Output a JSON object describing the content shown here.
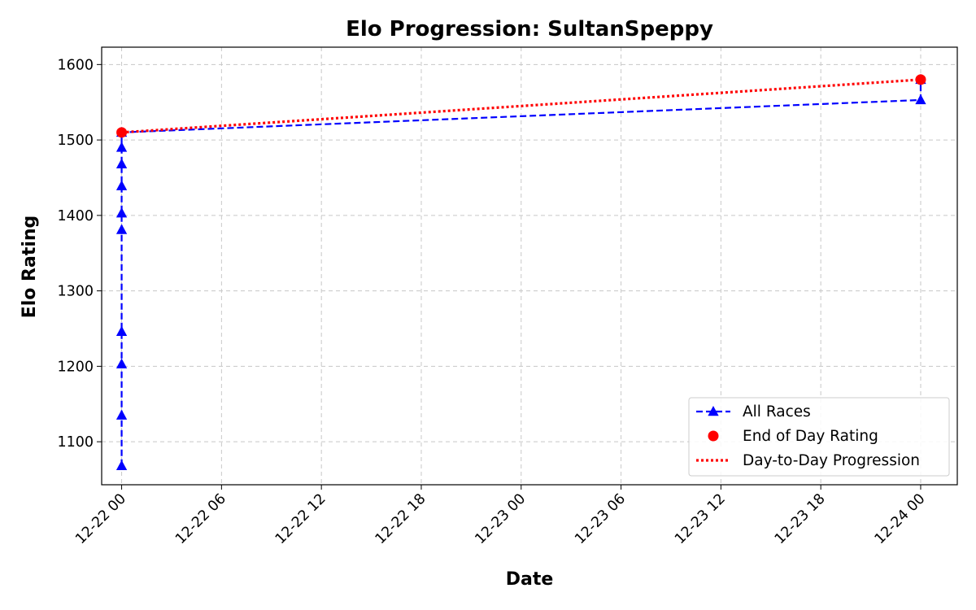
{
  "chart_data": {
    "type": "line",
    "title": "Elo Progression: SultanSpeppy",
    "xlabel": "Date",
    "ylabel": "Elo Rating",
    "x_range": [
      "2024-12-21T22:48",
      "2024-12-24T02:12"
    ],
    "ylim": [
      1043,
      1623
    ],
    "x_ticks": [
      {
        "value": "2024-12-22T00:00",
        "label": "12-22 00"
      },
      {
        "value": "2024-12-22T06:00",
        "label": "12-22 06"
      },
      {
        "value": "2024-12-22T12:00",
        "label": "12-22 12"
      },
      {
        "value": "2024-12-22T18:00",
        "label": "12-22 18"
      },
      {
        "value": "2024-12-23T00:00",
        "label": "12-23 00"
      },
      {
        "value": "2024-12-23T06:00",
        "label": "12-23 06"
      },
      {
        "value": "2024-12-23T12:00",
        "label": "12-23 12"
      },
      {
        "value": "2024-12-23T18:00",
        "label": "12-23 18"
      },
      {
        "value": "2024-12-24T00:00",
        "label": "12-24 00"
      }
    ],
    "y_ticks": [
      1100,
      1200,
      1300,
      1400,
      1500,
      1600
    ],
    "grid": true,
    "legend_position": "lower-right",
    "series": [
      {
        "name": "All Races",
        "style": "dashed line with triangle markers",
        "color": "#0000ff",
        "points": [
          {
            "x": "2024-12-22T00:00",
            "y": 1068
          },
          {
            "x": "2024-12-22T00:00",
            "y": 1135
          },
          {
            "x": "2024-12-22T00:00",
            "y": 1203
          },
          {
            "x": "2024-12-22T00:00",
            "y": 1246
          },
          {
            "x": "2024-12-22T00:00",
            "y": 1381
          },
          {
            "x": "2024-12-22T00:00",
            "y": 1403
          },
          {
            "x": "2024-12-22T00:00",
            "y": 1439
          },
          {
            "x": "2024-12-22T00:00",
            "y": 1468
          },
          {
            "x": "2024-12-22T00:00",
            "y": 1490
          },
          {
            "x": "2024-12-22T00:00",
            "y": 1510
          },
          {
            "x": "2024-12-24T00:00",
            "y": 1553
          },
          {
            "x": "2024-12-24T00:00",
            "y": 1580
          }
        ]
      },
      {
        "name": "End of Day Rating",
        "style": "circle markers",
        "color": "#ff0000",
        "points": [
          {
            "x": "2024-12-22T00:00",
            "y": 1510
          },
          {
            "x": "2024-12-24T00:00",
            "y": 1580
          }
        ]
      },
      {
        "name": "Day-to-Day Progression",
        "style": "dotted line",
        "color": "#ff0000",
        "points": [
          {
            "x": "2024-12-22T00:00",
            "y": 1510
          },
          {
            "x": "2024-12-24T00:00",
            "y": 1580
          }
        ]
      }
    ]
  }
}
